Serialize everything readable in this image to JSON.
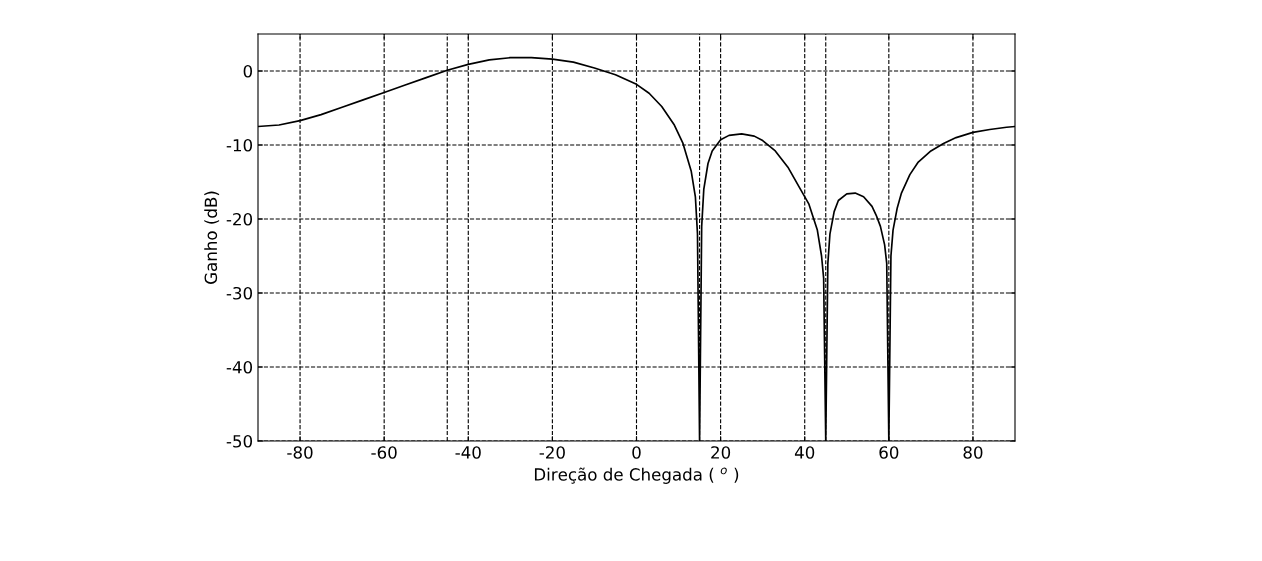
{
  "chart_data": {
    "type": "line",
    "xlabel": "Direção de Chegada ( $^{o}$ )",
    "ylabel": "Ganho (dB)",
    "x": [
      -90,
      -85,
      -80,
      -75,
      -70,
      -65,
      -60,
      -55,
      -50,
      -45,
      -40,
      -35,
      -30,
      -25,
      -20,
      -15,
      -10,
      -5,
      0,
      3,
      6,
      9,
      11,
      13,
      14,
      14.5,
      15,
      15.5,
      16,
      17,
      18,
      20,
      22,
      25,
      28,
      30,
      33,
      36,
      39,
      41,
      43,
      44,
      44.5,
      45,
      45.5,
      46,
      47,
      48,
      50,
      52,
      54,
      56,
      57,
      58,
      59,
      59.5,
      60,
      60.5,
      61,
      62,
      63,
      65,
      67,
      70,
      73,
      76,
      80,
      84,
      88,
      90
    ],
    "series": [
      {
        "color": "#000000",
        "values": [
          -7.5,
          -7.3,
          -6.7,
          -5.9,
          -4.9,
          -3.9,
          -2.9,
          -1.9,
          -0.9,
          0.1,
          0.9,
          1.5,
          1.8,
          1.8,
          1.6,
          1.2,
          0.4,
          -0.5,
          -1.8,
          -3,
          -4.8,
          -7.3,
          -9.7,
          -13.5,
          -17,
          -22,
          -50,
          -21,
          -16,
          -12.5,
          -10.8,
          -9.3,
          -8.7,
          -8.5,
          -8.8,
          -9.4,
          -10.8,
          -13,
          -16,
          -18,
          -21.5,
          -25,
          -28,
          -50,
          -26,
          -22,
          -19,
          -17.5,
          -16.6,
          -16.5,
          -17,
          -18.3,
          -19.5,
          -21,
          -23.5,
          -26,
          -50,
          -25,
          -21.5,
          -18.5,
          -16.5,
          -14,
          -12.3,
          -10.8,
          -9.8,
          -9,
          -8.3,
          -7.9,
          -7.6,
          -7.5
        ]
      }
    ],
    "xlim": [
      -90,
      90
    ],
    "ylim": [
      -50,
      5
    ],
    "xticks": [
      -80,
      -60,
      -40,
      -20,
      0,
      20,
      40,
      60,
      80
    ],
    "yticks": [
      -50,
      -40,
      -30,
      -20,
      -10,
      0
    ],
    "grid": true,
    "line_style": "solid",
    "marker": "none",
    "ref_lines": [
      {
        "axis": "x",
        "value": -45,
        "line_style": "dashed",
        "color": "#000000"
      },
      {
        "axis": "x",
        "value": 15,
        "line_style": "dashed",
        "color": "#000000"
      },
      {
        "axis": "x",
        "value": 45,
        "line_style": "dashed",
        "color": "#000000"
      }
    ]
  }
}
